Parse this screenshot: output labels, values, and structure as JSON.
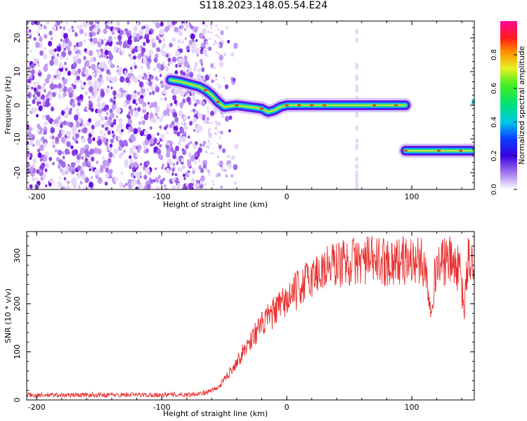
{
  "title": "S118.2023.148.05.54.E24",
  "colors": {
    "line": "#e8302f",
    "axis": "#000000"
  },
  "chart_data": [
    {
      "type": "heatmap",
      "xlabel": "Height of straight line (km)",
      "ylabel": "Frequency (Hz)",
      "xlim": [
        -208,
        150
      ],
      "ylim": [
        -25,
        25
      ],
      "x_ticks": [
        -200,
        -100,
        0,
        100
      ],
      "y_ticks": [
        -20,
        -10,
        0,
        10,
        20
      ],
      "colorbar": {
        "label": "Normalized spectral amplitude",
        "range": [
          0,
          1
        ],
        "ticks": [
          "0.0",
          "0.2",
          "0.4",
          "0.6",
          "0.8"
        ]
      },
      "ridge": {
        "x": [
          -93,
          -85,
          -75,
          -70,
          -65,
          -60,
          -55,
          -50,
          -40,
          -30,
          -20,
          -15,
          -10,
          -5,
          0,
          10,
          20,
          40,
          60,
          80,
          95
        ],
        "y": [
          7.5,
          7,
          6,
          5.5,
          4.5,
          3,
          1,
          -0.5,
          0,
          -0.5,
          -1,
          -2,
          -1.5,
          -0.5,
          0,
          0,
          0,
          0,
          0,
          0,
          0
        ]
      },
      "ridge2": {
        "x": [
          95,
          148
        ],
        "y": [
          -13.5,
          -13.5
        ]
      },
      "noise_region_x": [
        -208,
        -65
      ],
      "vertical_streak_x": 56
    },
    {
      "type": "line",
      "xlabel": "Height of straight line (km)",
      "ylabel": "SNR (10 * v/v)",
      "xlim": [
        -208,
        150
      ],
      "ylim": [
        0,
        350
      ],
      "x_ticks": [
        -200,
        -100,
        0,
        100
      ],
      "y_ticks": [
        0,
        100,
        200,
        300
      ],
      "trend": {
        "x": [
          -208,
          -80,
          -65,
          -55,
          -45,
          -35,
          -25,
          -15,
          -5,
          5,
          15,
          25,
          35,
          45,
          60,
          80,
          100,
          110,
          115,
          120,
          130,
          138,
          142,
          145,
          150
        ],
        "y": [
          10,
          11,
          15,
          25,
          60,
          100,
          140,
          170,
          195,
          220,
          245,
          265,
          280,
          285,
          290,
          288,
          290,
          285,
          200,
          280,
          290,
          270,
          190,
          290,
          285
        ]
      }
    }
  ]
}
